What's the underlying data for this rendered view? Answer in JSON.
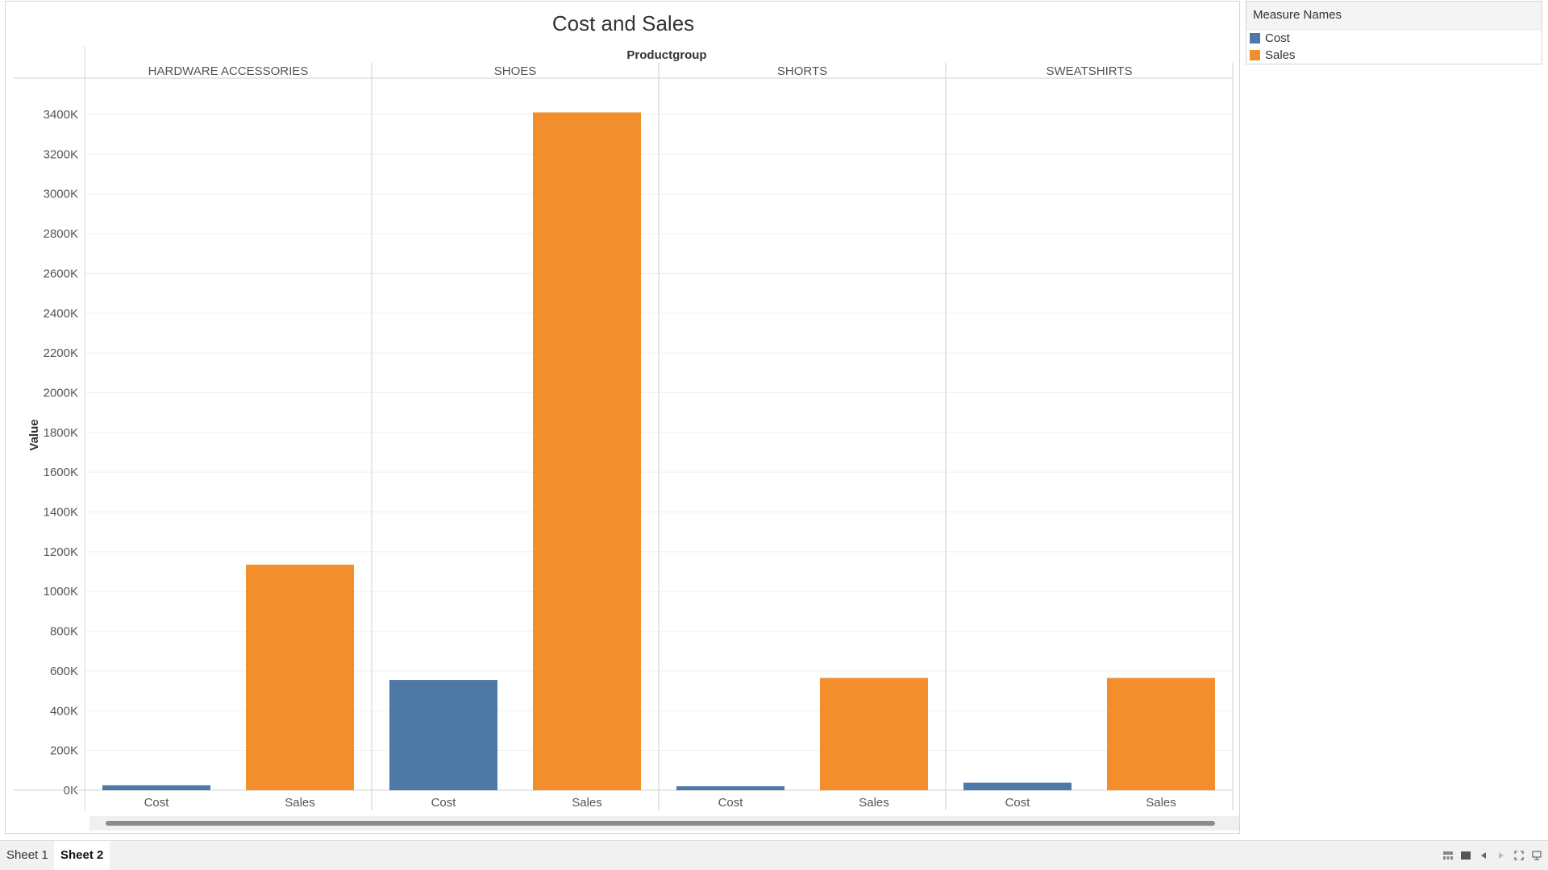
{
  "chart_data": {
    "type": "bar",
    "title": "Cost and Sales",
    "column_header": "Productgroup",
    "ylabel": "Value",
    "ylim": [
      0,
      3500000
    ],
    "yticks": [
      0,
      200000,
      400000,
      600000,
      800000,
      1000000,
      1200000,
      1400000,
      1600000,
      1800000,
      2000000,
      2200000,
      2400000,
      2600000,
      2800000,
      3000000,
      3200000,
      3400000
    ],
    "ytick_labels": [
      "0K",
      "200K",
      "400K",
      "600K",
      "800K",
      "1000K",
      "1200K",
      "1400K",
      "1600K",
      "1800K",
      "2000K",
      "2200K",
      "2400K",
      "2600K",
      "2800K",
      "3000K",
      "3200K",
      "3400K"
    ],
    "grid": true,
    "panes": [
      {
        "name": "HARDWARE ACCESSORIES",
        "bars": [
          {
            "label": "Cost",
            "value": 25000
          },
          {
            "label": "Sales",
            "value": 1135000
          }
        ]
      },
      {
        "name": "SHOES",
        "bars": [
          {
            "label": "Cost",
            "value": 555000
          },
          {
            "label": "Sales",
            "value": 3410000
          }
        ]
      },
      {
        "name": "SHORTS",
        "bars": [
          {
            "label": "Cost",
            "value": 20000
          },
          {
            "label": "Sales",
            "value": 565000
          }
        ]
      },
      {
        "name": "SWEATSHIRTS",
        "bars": [
          {
            "label": "Cost",
            "value": 38000
          },
          {
            "label": "Sales",
            "value": 565000
          }
        ]
      }
    ],
    "series_colors": {
      "Cost": "#4e79a7",
      "Sales": "#f28e2b"
    },
    "legend_placement": "top-right"
  },
  "legend": {
    "title": "Measure Names",
    "items": [
      {
        "label": "Cost",
        "color": "#4e79a7"
      },
      {
        "label": "Sales",
        "color": "#f28e2b"
      }
    ]
  },
  "tabs": [
    {
      "label": "Sheet 1",
      "active": false
    },
    {
      "label": "Sheet 2",
      "active": true
    }
  ]
}
